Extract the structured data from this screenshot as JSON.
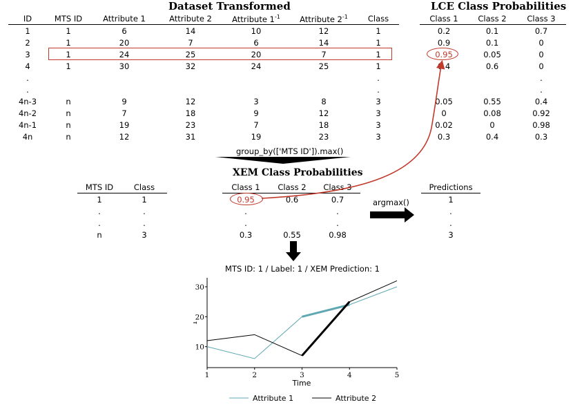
{
  "dataset": {
    "title": "Dataset Transformed",
    "headers": [
      "ID",
      "MTS ID",
      "Attribute 1",
      "Attribute 2",
      "Attribute 1",
      "Attribute 2",
      "Class"
    ],
    "inverse_superscript": "-1",
    "rows": [
      [
        "1",
        "1",
        "6",
        "14",
        "10",
        "12",
        "1"
      ],
      [
        "2",
        "1",
        "20",
        "7",
        "6",
        "14",
        "1"
      ],
      [
        "3",
        "1",
        "24",
        "25",
        "20",
        "7",
        "1"
      ],
      [
        "4",
        "1",
        "30",
        "32",
        "24",
        "25",
        "1"
      ],
      [
        ".",
        "",
        "",
        "",
        "",
        "",
        "."
      ],
      [
        ".",
        "",
        "",
        "",
        "",
        "",
        "."
      ],
      [
        "4n-3",
        "n",
        "9",
        "12",
        "3",
        "8",
        "3"
      ],
      [
        "4n-2",
        "n",
        "7",
        "18",
        "9",
        "12",
        "3"
      ],
      [
        "4n-1",
        "n",
        "19",
        "23",
        "7",
        "18",
        "3"
      ],
      [
        "4n",
        "n",
        "12",
        "31",
        "19",
        "23",
        "3"
      ]
    ]
  },
  "lce": {
    "title": "LCE Class Probabilities",
    "headers": [
      "Class 1",
      "Class 2",
      "Class 3"
    ],
    "rows": [
      [
        "0.2",
        "0.1",
        "0.7"
      ],
      [
        "0.9",
        "0.1",
        "0"
      ],
      [
        "0.95",
        "0.05",
        "0"
      ],
      [
        "0.4",
        "0.6",
        "0"
      ],
      [
        "",
        "",
        "."
      ],
      [
        "",
        "",
        "."
      ],
      [
        "0.05",
        "0.55",
        "0.4"
      ],
      [
        "0",
        "0.08",
        "0.92"
      ],
      [
        "0.02",
        "0",
        "0.98"
      ],
      [
        "0.3",
        "0.4",
        "0.3"
      ]
    ]
  },
  "groupby_label": "group_by(['MTS ID']).max()",
  "mts_table": {
    "headers": [
      "MTS ID",
      "Class"
    ],
    "rows": [
      [
        "1",
        "1"
      ],
      [
        ".",
        "."
      ],
      [
        ".",
        "."
      ],
      [
        "n",
        "3"
      ]
    ]
  },
  "xem": {
    "title": "XEM Class Probabilities",
    "headers": [
      "Class 1",
      "Class 2",
      "Class 3"
    ],
    "rows": [
      [
        "0.95",
        "0.6",
        "0.7"
      ],
      [
        ".",
        "",
        "."
      ],
      [
        ".",
        "",
        "."
      ],
      [
        "0.3",
        "0.55",
        "0.98"
      ]
    ]
  },
  "argmax_label": "argmax()",
  "predictions": {
    "header": "Predictions",
    "rows": [
      "1",
      ".",
      ".",
      "3"
    ]
  },
  "colors": {
    "highlight": "#c0392b",
    "attribute1": "#5fa8b3",
    "attribute2": "#000000"
  },
  "chart_data": {
    "type": "line",
    "title": "MTS ID: 1 / Label: 1 / XEM Prediction: 1",
    "xlabel": "Time",
    "ylabel": "1",
    "x": [
      1,
      2,
      3,
      4,
      5
    ],
    "xticks": [
      "1",
      "2",
      "3",
      "4",
      "5"
    ],
    "yticks": [
      "10",
      "20",
      "30"
    ],
    "xlim": [
      1,
      5
    ],
    "ylim": [
      3,
      33
    ],
    "series": [
      {
        "name": "Attribute 1",
        "values": [
          10,
          6,
          20,
          24,
          30
        ],
        "color": "#5fa8b3"
      },
      {
        "name": "Attribute 2",
        "values": [
          12,
          14,
          7,
          25,
          32
        ],
        "color": "#000000"
      }
    ],
    "highlighted_segments": [
      {
        "series": "Attribute 1",
        "x_from": 3,
        "x_to": 4
      },
      {
        "series": "Attribute 2",
        "x_from": 3,
        "x_to": 4
      }
    ],
    "legend": "bottom"
  }
}
